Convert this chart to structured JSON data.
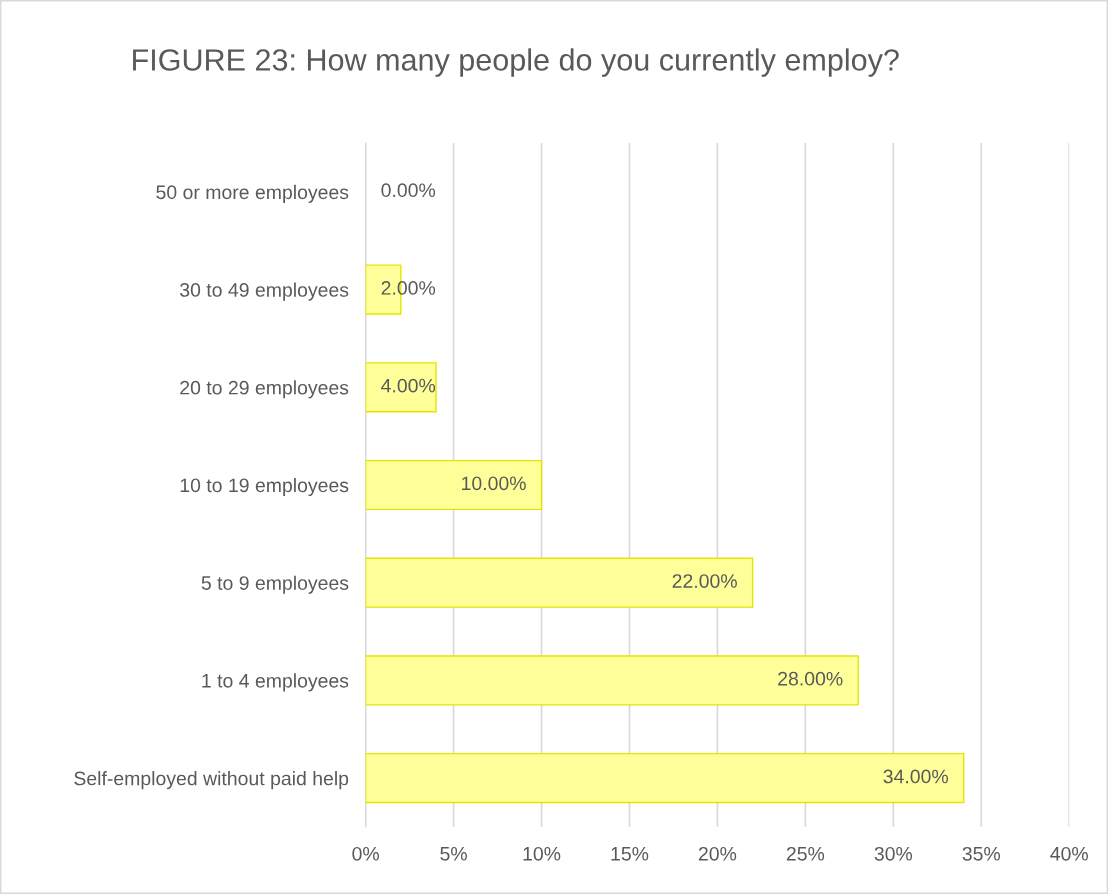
{
  "chart_data": {
    "type": "bar",
    "orientation": "horizontal",
    "title": "FIGURE 23: How many people do you currently employ?",
    "categories": [
      "50 or more employees",
      "30 to 49 employees",
      "20 to 29 employees",
      "10 to 19 employees",
      "5 to 9 employees",
      "1 to 4 employees",
      "Self-employed without paid help"
    ],
    "values": [
      0,
      2,
      4,
      10,
      22,
      28,
      34
    ],
    "value_labels": [
      "0.00%",
      "2.00%",
      "4.00%",
      "10.00%",
      "22.00%",
      "28.00%",
      "34.00%"
    ],
    "color": "#ffff99",
    "xlim": [
      0,
      40
    ],
    "xticks": [
      {
        "value": 0,
        "label": "0%"
      },
      {
        "value": 5,
        "label": "5%"
      },
      {
        "value": 10,
        "label": "10%"
      },
      {
        "value": 15,
        "label": "15%"
      },
      {
        "value": 20,
        "label": "20%"
      },
      {
        "value": 25,
        "label": "25%"
      },
      {
        "value": 30,
        "label": "30%"
      },
      {
        "value": 35,
        "label": "35%"
      },
      {
        "value": 40,
        "label": "40%"
      }
    ],
    "grid": "x",
    "legend": false
  }
}
